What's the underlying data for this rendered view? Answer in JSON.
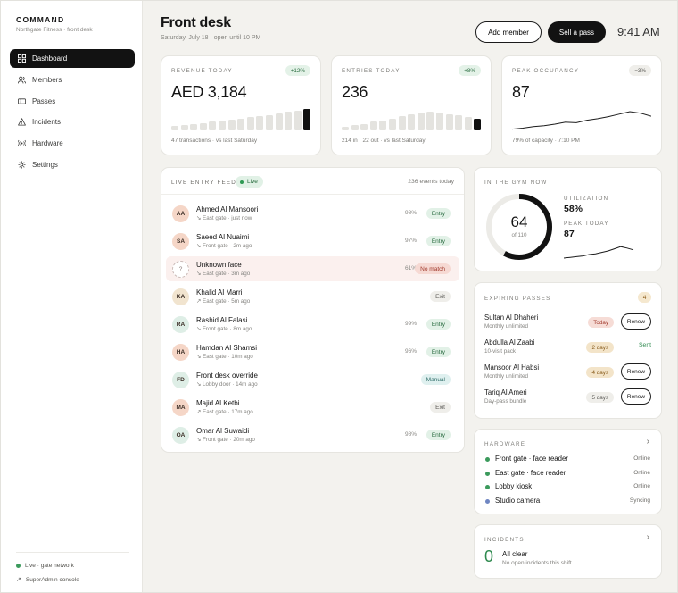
{
  "sidebar": {
    "brand_title": "COMMAND",
    "brand_sub": "Northgate Fitness · front desk",
    "items": [
      {
        "label": "Dashboard",
        "icon": "grid-icon",
        "active": true
      },
      {
        "label": "Members",
        "icon": "users-icon",
        "active": false
      },
      {
        "label": "Passes",
        "icon": "ticket-icon",
        "active": false
      },
      {
        "label": "Incidents",
        "icon": "warning-icon",
        "active": false
      },
      {
        "label": "Hardware",
        "icon": "broadcast-icon",
        "active": false
      },
      {
        "label": "Settings",
        "icon": "gear-icon",
        "active": false
      }
    ],
    "status_label": "Live · gate network",
    "status_color": "#3b9a5c",
    "console_label": "SuperAdmin console"
  },
  "header": {
    "title": "Front desk",
    "subtitle": "Saturday, July 18 · open until 10 PM",
    "add_member": "Add member",
    "sell_pass": "Sell a pass",
    "time": "9:41 AM"
  },
  "kpis": {
    "revenue": {
      "label": "REVENUE TODAY",
      "badge": "+12%",
      "value": "AED 3,184",
      "foot": "47 transactions · vs last Saturday",
      "bars": [
        0.18,
        0.22,
        0.26,
        0.3,
        0.34,
        0.38,
        0.44,
        0.48,
        0.52,
        0.58,
        0.62,
        0.68,
        0.74,
        0.8,
        0.86
      ]
    },
    "entries": {
      "label": "ENTRIES TODAY",
      "badge": "+8%",
      "value": "236",
      "foot": "214 in · 22 out · vs last Saturday",
      "bars": [
        0.14,
        0.2,
        0.26,
        0.34,
        0.4,
        0.48,
        0.56,
        0.64,
        0.7,
        0.76,
        0.72,
        0.66,
        0.6,
        0.54,
        0.46
      ]
    },
    "occupancy": {
      "label": "PEAK OCCUPANCY",
      "badge": "−3%",
      "value": "87",
      "foot": "79% of capacity · 7:10 PM",
      "spark": [
        0.12,
        0.16,
        0.22,
        0.26,
        0.32,
        0.4,
        0.38,
        0.48,
        0.54,
        0.62,
        0.72,
        0.82,
        0.76,
        0.64
      ]
    }
  },
  "feed": {
    "title": "LIVE ENTRY FEED",
    "live_label": "Live",
    "count": "236 events today",
    "rows": [
      {
        "initials": "AA",
        "name": "Ahmed Al Mansoori",
        "dir": "in",
        "sub": "East gate · just now",
        "pct": "98%",
        "status": "Entry",
        "kind": "entry",
        "avatar": "peach"
      },
      {
        "initials": "SA",
        "name": "Saeed Al Nuaimi",
        "dir": "in",
        "sub": "Front gate · 2m ago",
        "pct": "97%",
        "status": "Entry",
        "kind": "entry",
        "avatar": "peach"
      },
      {
        "initials": "?",
        "name": "Unknown face",
        "dir": "in",
        "sub": "East gate · 3m ago",
        "pct": "61%",
        "status": "No match",
        "kind": "nomatch",
        "avatar": "blank"
      },
      {
        "initials": "KA",
        "name": "Khalid Al Marri",
        "dir": "out",
        "sub": "East gate · 5m ago",
        "pct": "",
        "status": "Exit",
        "kind": "exit",
        "avatar": "sand"
      },
      {
        "initials": "RA",
        "name": "Rashid Al Falasi",
        "dir": "in",
        "sub": "Front gate · 8m ago",
        "pct": "99%",
        "status": "Entry",
        "kind": "entry",
        "avatar": "mint"
      },
      {
        "initials": "HA",
        "name": "Hamdan Al Shamsi",
        "dir": "in",
        "sub": "East gate · 10m ago",
        "pct": "96%",
        "status": "Entry",
        "kind": "entry",
        "avatar": "peach"
      },
      {
        "initials": "FD",
        "name": "Front desk override",
        "dir": "in",
        "sub": "Lobby door · 14m ago",
        "pct": "",
        "status": "Manual",
        "kind": "manual",
        "avatar": "mint"
      },
      {
        "initials": "MA",
        "name": "Majid Al Ketbi",
        "dir": "out",
        "sub": "East gate · 17m ago",
        "pct": "",
        "status": "Exit",
        "kind": "exit",
        "avatar": "peach"
      },
      {
        "initials": "OA",
        "name": "Omar Al Suwaidi",
        "dir": "in",
        "sub": "Front gate · 20m ago",
        "pct": "98%",
        "status": "Entry",
        "kind": "entry",
        "avatar": "mint"
      }
    ]
  },
  "gym": {
    "title": "IN THE GYM NOW",
    "count": "64",
    "of": "of 110",
    "fill": 0.58,
    "util_label": "UTILIZATION",
    "util_value": "58%",
    "peak_label": "PEAK TODAY",
    "peak_value": "87",
    "spark": [
      0.1,
      0.14,
      0.18,
      0.22,
      0.3,
      0.34,
      0.42,
      0.5,
      0.62,
      0.74,
      0.66,
      0.56
    ]
  },
  "expiring": {
    "title": "EXPIRING PASSES",
    "count": "4",
    "renew_label": "Renew",
    "rows": [
      {
        "name": "Sultan Al Dhaheri",
        "plan": "Monthly unlimited",
        "days": "Today",
        "tone": "red",
        "action": "renew"
      },
      {
        "name": "Abdulla Al Zaabi",
        "plan": "10-visit pack",
        "days": "2 days",
        "tone": "amber",
        "action": "sent",
        "sent_label": "Sent"
      },
      {
        "name": "Mansoor Al Habsi",
        "plan": "Monthly unlimited",
        "days": "4 days",
        "tone": "amber",
        "action": "renew"
      },
      {
        "name": "Tariq Al Ameri",
        "plan": "Day-pass bundle",
        "days": "5 days",
        "tone": "gray",
        "action": "renew"
      }
    ]
  },
  "hardware": {
    "title": "HARDWARE",
    "rows": [
      {
        "name": "Front gate · face reader",
        "status": "Online",
        "color": "#3b9a5c"
      },
      {
        "name": "East gate · face reader",
        "status": "Online",
        "color": "#3b9a5c"
      },
      {
        "name": "Lobby kiosk",
        "status": "Online",
        "color": "#3b9a5c"
      },
      {
        "name": "Studio camera",
        "status": "Syncing",
        "color": "#6f86c2"
      }
    ]
  },
  "incidents": {
    "title": "INCIDENTS",
    "count": "0",
    "headline": "All clear",
    "sub": "No open incidents this shift"
  },
  "colors": {
    "accent": "#121212",
    "success": "#2f8a4f",
    "danger": "#a23b2e"
  }
}
